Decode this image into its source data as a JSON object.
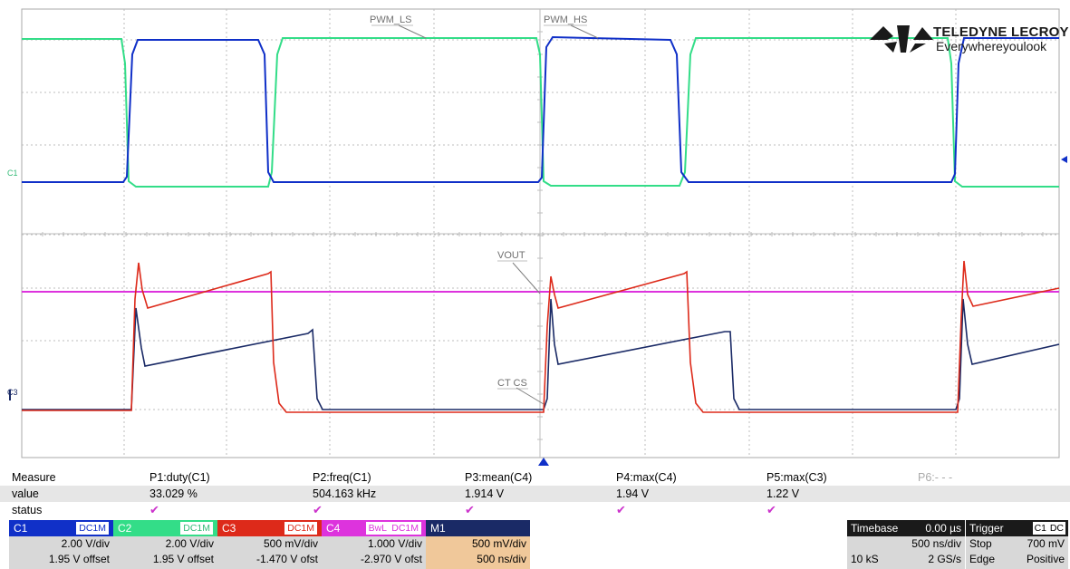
{
  "brand": {
    "name": "TELEDYNE LECROY",
    "tagline": "Everywhereyoulook"
  },
  "traces": {
    "pwm_ls": "PWM_LS",
    "pwm_hs": "PWM_HS",
    "vout": "VOUT",
    "ct_cs": "CT CS"
  },
  "colors": {
    "c1": "#1030c8",
    "c2": "#33dd88",
    "c3": "#dd2a1a",
    "c4": "#dd33dd",
    "m1": "#1a2a66",
    "grid": "#bdbdbd"
  },
  "measure": {
    "header": [
      "Measure",
      "P1:duty(C1)",
      "P2:freq(C1)",
      "P3:mean(C4)",
      "P4:max(C4)",
      "P5:max(C3)",
      "P6:- - -"
    ],
    "value_label": "value",
    "values": [
      "33.029 %",
      "504.163 kHz",
      "1.914 V",
      "1.94 V",
      "1.22 V"
    ],
    "status_label": "status",
    "status": [
      "✔",
      "✔",
      "✔",
      "✔",
      "✔"
    ]
  },
  "channels": [
    {
      "name": "C1",
      "badge": "DC1M",
      "line1": "2.00 V/div",
      "line2": "1.95 V offset"
    },
    {
      "name": "C2",
      "badge": "DC1M",
      "line1": "2.00 V/div",
      "line2": "1.95 V offset"
    },
    {
      "name": "C3",
      "badge": "DC1M",
      "line1": "500 mV/div",
      "line2": "-1.470 V ofst"
    },
    {
      "name": "C4",
      "badge1": "BwL",
      "badge": "DC1M",
      "line1": "1.000 V/div",
      "line2": "-2.970 V ofst"
    },
    {
      "name": "M1",
      "line1": "500 mV/div",
      "line2": "500 ns/div"
    }
  ],
  "timebase": {
    "label": "Timebase",
    "delay": "0.00 µs",
    "per_div": "500 ns/div",
    "samples": "10 kS",
    "rate": "2 GS/s"
  },
  "trigger": {
    "label": "Trigger",
    "source": "C1",
    "coupling": "DC",
    "mode": "Stop",
    "level": "700 mV",
    "type": "Edge",
    "slope": "Positive"
  },
  "markers": {
    "c1_axis": "C1",
    "c3_axis": "C3"
  }
}
